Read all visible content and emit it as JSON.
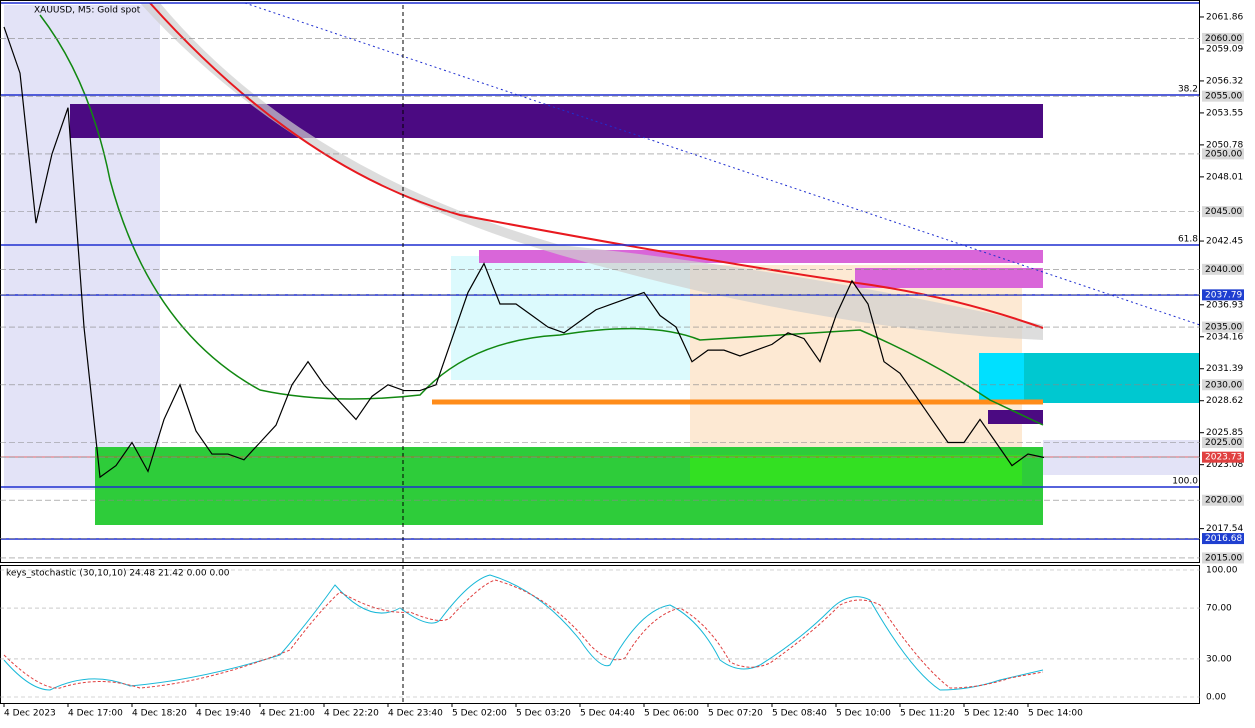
{
  "chart": {
    "title": "XAUUSD, M5:  Gold spot",
    "ylim": [
      2014.65,
      2063.07
    ],
    "yticks": [
      2061.86,
      2059.09,
      2056.32,
      2053.55,
      2050.78,
      2048.01,
      2042.45,
      2036.93,
      2034.16,
      2031.39,
      2028.62,
      2025.85,
      2023.08,
      2017.54
    ],
    "levels": [
      {
        "value": 2060,
        "label": "2060.00",
        "color": "#d9d9d9"
      },
      {
        "value": 2055,
        "label": "2055.00",
        "color": "#d9d9d9"
      },
      {
        "value": 2050,
        "label": "2050.00",
        "color": "#d9d9d9"
      },
      {
        "value": 2045,
        "label": "2045.00",
        "color": "#d9d9d9"
      },
      {
        "value": 2040,
        "label": "2040.00",
        "color": "#d9d9d9"
      },
      {
        "value": 2037.79,
        "label": "2037.79",
        "color": "#1f3fd0"
      },
      {
        "value": 2035,
        "label": "2035.00",
        "color": "#d9d9d9"
      },
      {
        "value": 2030,
        "label": "2030.00",
        "color": "#d9d9d9"
      },
      {
        "value": 2025,
        "label": "2025.00",
        "color": "#d9d9d9"
      },
      {
        "value": 2023.73,
        "label": "2023.73",
        "color": "#e04040"
      },
      {
        "value": 2020,
        "label": "2020.00",
        "color": "#d9d9d9"
      },
      {
        "value": 2016.68,
        "label": "2016.68",
        "color": "#1f3fd0"
      },
      {
        "value": 2015,
        "label": "2015.00",
        "color": "#d9d9d9"
      }
    ],
    "fib_labels": [
      "38.2",
      "61.8",
      "100.0"
    ],
    "categories": [
      "4 Dec 2023",
      "4 Dec 17:00",
      "4 Dec 18:20",
      "4 Dec 19:40",
      "4 Dec 21:00",
      "4 Dec 22:20",
      "4 Dec 23:40",
      "5 Dec 02:00",
      "5 Dec 03:20",
      "5 Dec 04:40",
      "5 Dec 06:00",
      "5 Dec 07:20",
      "5 Dec 08:40",
      "5 Dec 10:00",
      "5 Dec 11:20",
      "5 Dec 12:40",
      "5 Dec 14:00"
    ],
    "close": [
      2061,
      2057,
      2044,
      2050,
      2054,
      2035,
      2022,
      2023,
      2025,
      2022.5,
      2027,
      2030,
      2026,
      2024,
      2024,
      2023.5,
      2025,
      2026.5,
      2030,
      2032,
      2030,
      2028.5,
      2027,
      2029,
      2030,
      2029.5,
      2029.5,
      2030,
      2034,
      2038,
      2040.5,
      2037,
      2037,
      2036,
      2035,
      2034.5,
      2035.5,
      2036.5,
      2037,
      2037.5,
      2038,
      2036,
      2035,
      2032,
      2033,
      2033,
      2032.5,
      2033,
      2033.5,
      2034.5,
      2034,
      2032,
      2036,
      2039,
      2037,
      2032,
      2031,
      2029,
      2027,
      2025,
      2025,
      2027,
      2025,
      2023,
      2024,
      2023.7
    ],
    "indicator": {
      "label": "keys_stochastic (30,10,10) 24.48 21.42 0.00 0.00",
      "ylim": [
        0,
        100
      ],
      "yticks": [
        {
          "value": 100,
          "label": "100.00"
        },
        {
          "value": 70,
          "label": "70.00"
        },
        {
          "value": 30,
          "label": "30.00"
        },
        {
          "value": 0,
          "label": "0.00"
        }
      ]
    }
  }
}
